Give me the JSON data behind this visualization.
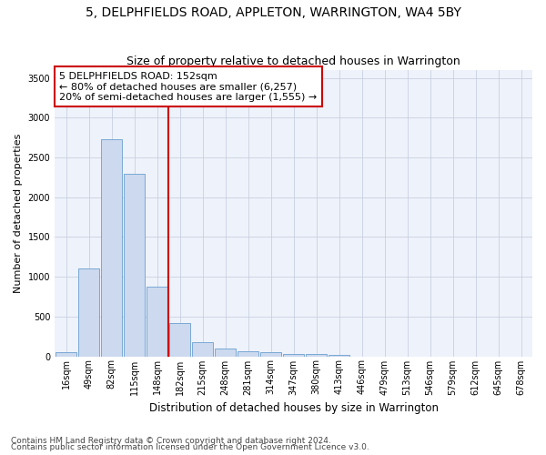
{
  "title": "5, DELPHFIELDS ROAD, APPLETON, WARRINGTON, WA4 5BY",
  "subtitle": "Size of property relative to detached houses in Warrington",
  "xlabel": "Distribution of detached houses by size in Warrington",
  "ylabel": "Number of detached properties",
  "categories": [
    "16sqm",
    "49sqm",
    "82sqm",
    "115sqm",
    "148sqm",
    "182sqm",
    "215sqm",
    "248sqm",
    "281sqm",
    "314sqm",
    "347sqm",
    "380sqm",
    "413sqm",
    "446sqm",
    "479sqm",
    "513sqm",
    "546sqm",
    "579sqm",
    "612sqm",
    "645sqm",
    "678sqm"
  ],
  "values": [
    50,
    1100,
    2730,
    2290,
    880,
    420,
    175,
    100,
    60,
    55,
    30,
    25,
    20,
    0,
    0,
    0,
    0,
    0,
    0,
    0,
    0
  ],
  "bar_color": "#ccd9ee",
  "bar_edge_color": "#6a9fd0",
  "vline_color": "#cc0000",
  "annotation_line1": "5 DELPHFIELDS ROAD: 152sqm",
  "annotation_line2": "← 80% of detached houses are smaller (6,257)",
  "annotation_line3": "20% of semi-detached houses are larger (1,555) →",
  "annotation_box_color": "white",
  "annotation_box_edge_color": "#cc0000",
  "ylim": [
    0,
    3600
  ],
  "yticks": [
    0,
    500,
    1000,
    1500,
    2000,
    2500,
    3000,
    3500
  ],
  "grid_color": "#c8d0e0",
  "bg_color": "#eef2fa",
  "footer1": "Contains HM Land Registry data © Crown copyright and database right 2024.",
  "footer2": "Contains public sector information licensed under the Open Government Licence v3.0.",
  "title_fontsize": 10,
  "subtitle_fontsize": 9,
  "xlabel_fontsize": 8.5,
  "ylabel_fontsize": 8,
  "tick_fontsize": 7,
  "annotation_fontsize": 8,
  "footer_fontsize": 6.5
}
